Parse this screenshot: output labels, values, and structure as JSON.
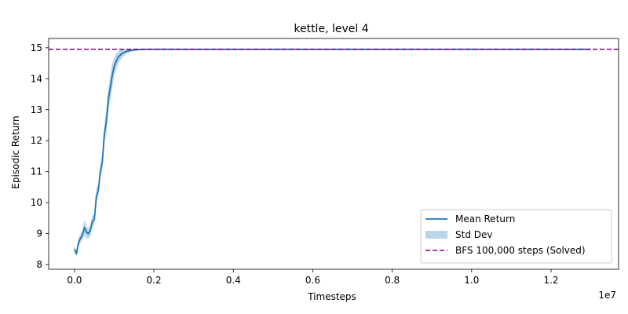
{
  "chart_data": {
    "type": "line",
    "title": "kettle, level 4",
    "xlabel": "Timesteps",
    "ylabel": "Episodic Return",
    "x_offset_label": "1e7",
    "xlim": [
      -0.065,
      1.37
    ],
    "ylim": [
      7.85,
      15.3
    ],
    "x_ticks": [
      0.0,
      0.2,
      0.4,
      0.6,
      0.8,
      1.0,
      1.2
    ],
    "x_tick_labels": [
      "0.0",
      "0.2",
      "0.4",
      "0.6",
      "0.8",
      "1.0",
      "1.2"
    ],
    "y_ticks": [
      8,
      9,
      10,
      11,
      12,
      13,
      14,
      15
    ],
    "y_tick_labels": [
      "8",
      "9",
      "10",
      "11",
      "12",
      "13",
      "14",
      "15"
    ],
    "grid": false,
    "legend_position": "bottom-right",
    "colors": {
      "mean": "#1f77b4",
      "std": "#1f77b4",
      "baseline": "#800080"
    },
    "series": [
      {
        "name": "Mean Return",
        "kind": "line",
        "x": [
          0.0,
          0.005,
          0.01,
          0.015,
          0.02,
          0.025,
          0.03,
          0.035,
          0.04,
          0.045,
          0.05,
          0.055,
          0.06,
          0.065,
          0.07,
          0.075,
          0.08,
          0.085,
          0.09,
          0.095,
          0.1,
          0.11,
          0.12,
          0.13,
          0.14,
          0.15,
          0.16,
          0.18,
          0.2,
          0.22,
          0.25,
          0.3,
          0.4,
          0.5,
          0.6,
          0.7,
          0.8,
          0.9,
          1.0,
          1.1,
          1.2,
          1.3
        ],
        "y": [
          8.5,
          8.35,
          8.7,
          8.85,
          8.95,
          9.2,
          9.05,
          9.0,
          9.1,
          9.4,
          9.45,
          10.2,
          10.4,
          11.0,
          11.3,
          12.2,
          12.6,
          13.3,
          13.7,
          14.1,
          14.4,
          14.7,
          14.82,
          14.88,
          14.91,
          14.93,
          14.94,
          14.95,
          14.95,
          14.95,
          14.95,
          14.95,
          14.95,
          14.95,
          14.95,
          14.95,
          14.95,
          14.95,
          14.95,
          14.95,
          14.95,
          14.95
        ]
      },
      {
        "name": "Std Dev",
        "kind": "band",
        "x": [
          0.0,
          0.005,
          0.01,
          0.015,
          0.02,
          0.025,
          0.03,
          0.035,
          0.04,
          0.045,
          0.05,
          0.055,
          0.06,
          0.065,
          0.07,
          0.075,
          0.08,
          0.085,
          0.09,
          0.095,
          0.1,
          0.11,
          0.12,
          0.13,
          0.14,
          0.15,
          0.16,
          0.18,
          0.2,
          0.22,
          0.25,
          0.3,
          0.4,
          0.5,
          0.6,
          0.7,
          0.8,
          0.9,
          1.0,
          1.1,
          1.2,
          1.3
        ],
        "lower": [
          8.4,
          8.25,
          8.55,
          8.7,
          8.8,
          8.95,
          8.85,
          8.85,
          8.9,
          9.2,
          9.3,
          9.95,
          10.2,
          10.8,
          11.0,
          11.9,
          12.2,
          12.9,
          13.3,
          13.7,
          14.1,
          14.5,
          14.68,
          14.8,
          14.86,
          14.9,
          14.92,
          14.94,
          14.94,
          14.94,
          14.94,
          14.94,
          14.94,
          14.94,
          14.94,
          14.94,
          14.94,
          14.94,
          14.94,
          14.94,
          14.94,
          14.94
        ],
        "upper": [
          8.6,
          8.45,
          8.85,
          9.0,
          9.1,
          9.45,
          9.25,
          9.15,
          9.3,
          9.6,
          9.6,
          10.45,
          10.6,
          11.2,
          11.6,
          12.5,
          13.0,
          13.7,
          14.1,
          14.5,
          14.7,
          14.9,
          14.96,
          14.96,
          14.96,
          14.96,
          14.96,
          14.96,
          14.96,
          14.96,
          14.96,
          14.96,
          14.96,
          14.96,
          14.96,
          14.96,
          14.96,
          14.96,
          14.96,
          14.96,
          14.96,
          14.96
        ]
      },
      {
        "name": "BFS 100,000 steps (Solved)",
        "kind": "hline",
        "y": 14.95
      }
    ]
  }
}
